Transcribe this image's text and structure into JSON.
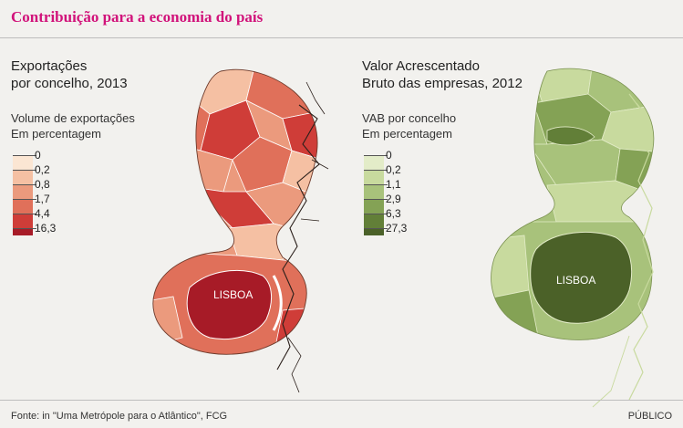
{
  "title": "Contribuição para a economia do país",
  "left_panel": {
    "title_line1": "Exportações",
    "title_line2": "por concelho, 2013",
    "legend_title_line1": "Volume de exportações",
    "legend_title_line2": "Em percentagem",
    "legend": [
      {
        "label": "0",
        "color": "#fbe6d3"
      },
      {
        "label": "0,2",
        "color": "#f5c0a3"
      },
      {
        "label": "0,8",
        "color": "#eb9a7d"
      },
      {
        "label": "1,7",
        "color": "#e0705a"
      },
      {
        "label": "4,4",
        "color": "#cf3d38"
      },
      {
        "label": "16,3",
        "color": "#a71b27"
      }
    ],
    "map_label": "LISBOA"
  },
  "right_panel": {
    "title_line1": "Valor Acrescentado",
    "title_line2": "Bruto das empresas, 2012",
    "legend_title_line1": "VAB por concelho",
    "legend_title_line2": "Em percentagem",
    "legend": [
      {
        "label": "0",
        "color": "#e3ecc8"
      },
      {
        "label": "0,2",
        "color": "#c8da9e"
      },
      {
        "label": "1,1",
        "color": "#a8c27b"
      },
      {
        "label": "2,9",
        "color": "#84a255"
      },
      {
        "label": "6,3",
        "color": "#627f38"
      },
      {
        "label": "27,3",
        "color": "#4b6128"
      }
    ],
    "map_label": "LISBOA"
  },
  "footer": {
    "source": "Fonte: in \"Uma Metrópole para o Atlântico\", FCG",
    "brand": "PÚBLICO"
  }
}
